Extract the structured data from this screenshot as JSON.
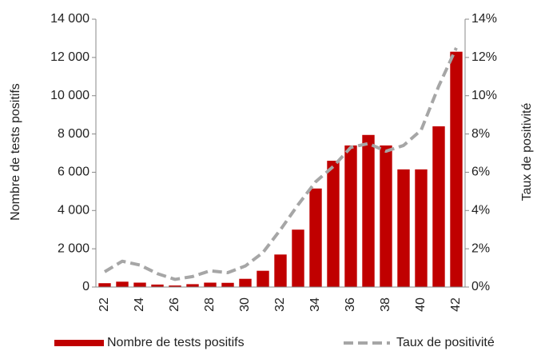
{
  "chart_data": {
    "type": "bar",
    "categories": [
      "22",
      null,
      "24",
      null,
      "26",
      null,
      "28",
      null,
      "30",
      null,
      "32",
      null,
      "34",
      null,
      "36",
      null,
      "38",
      null,
      "40",
      null,
      "42"
    ],
    "ylabel": "Nombre de tests positifs",
    "y2label": "Taux de positivité",
    "ylim": [
      0,
      14000
    ],
    "yticks": [
      0,
      {
        "value": 2000,
        "label": "2 000"
      },
      {
        "value": 4000,
        "label": "4 000"
      },
      {
        "value": 6000,
        "label": "6 000"
      },
      {
        "value": 8000,
        "label": "8 000"
      },
      {
        "value": 10000,
        "label": "10 000"
      },
      {
        "value": 12000,
        "label": "12 000"
      },
      {
        "value": 14000,
        "label": "14 000"
      }
    ],
    "y2lim": [
      0,
      14
    ],
    "y2ticks": [
      {
        "value": 0,
        "label": "0%"
      },
      {
        "value": 2,
        "label": "2%"
      },
      {
        "value": 4,
        "label": "4%"
      },
      {
        "value": 6,
        "label": "6%"
      },
      {
        "value": 8,
        "label": "8%"
      },
      {
        "value": 10,
        "label": "10%"
      },
      {
        "value": 12,
        "label": "12%"
      },
      {
        "value": 14,
        "label": "14%"
      }
    ],
    "legend": "bottom",
    "series": [
      {
        "name": "Nombre de tests positifs",
        "type": "bar",
        "color": "#c00000",
        "values": [
          200,
          280,
          230,
          130,
          80,
          150,
          230,
          220,
          430,
          850,
          1700,
          3000,
          5150,
          6600,
          7400,
          7950,
          7400,
          6150,
          6150,
          8400,
          12300
        ]
      },
      {
        "name": "Taux de positivité",
        "type": "line",
        "axis": "y2",
        "color": "#a6a6a6",
        "values": [
          0.8,
          1.35,
          1.15,
          0.7,
          0.4,
          0.55,
          0.85,
          0.75,
          1.1,
          1.8,
          3.0,
          4.3,
          5.5,
          6.3,
          7.3,
          7.5,
          7.1,
          7.4,
          8.2,
          10.5,
          12.5
        ]
      }
    ]
  }
}
